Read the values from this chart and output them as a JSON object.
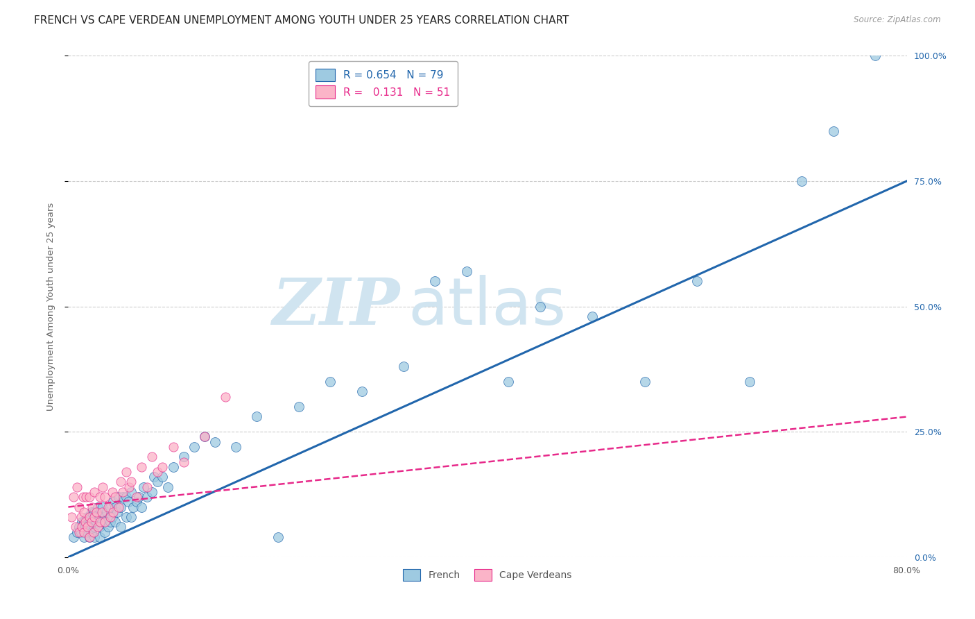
{
  "title": "FRENCH VS CAPE VERDEAN UNEMPLOYMENT AMONG YOUTH UNDER 25 YEARS CORRELATION CHART",
  "source": "Source: ZipAtlas.com",
  "ylabel": "Unemployment Among Youth under 25 years",
  "xlim": [
    0.0,
    0.8
  ],
  "ylim": [
    0.0,
    1.0
  ],
  "xticks": [
    0.0,
    0.1,
    0.2,
    0.3,
    0.4,
    0.5,
    0.6,
    0.7,
    0.8
  ],
  "xticklabels": [
    "0.0%",
    "",
    "",
    "",
    "",
    "",
    "",
    "",
    "80.0%"
  ],
  "yticks_right": [
    0.0,
    0.25,
    0.5,
    0.75,
    1.0
  ],
  "yticklabels_right": [
    "0.0%",
    "25.0%",
    "50.0%",
    "75.0%",
    "100.0%"
  ],
  "french_R": 0.654,
  "french_N": 79,
  "cape_R": 0.131,
  "cape_N": 51,
  "french_color": "#9ecae1",
  "cape_color": "#fbb4c8",
  "trendline_french_color": "#2166ac",
  "trendline_cape_color": "#e7298a",
  "french_trendline": [
    [
      0.0,
      0.0
    ],
    [
      0.8,
      0.75
    ]
  ],
  "cape_trendline": [
    [
      0.0,
      0.1
    ],
    [
      0.8,
      0.28
    ]
  ],
  "watermark_text": "ZIP",
  "watermark_text2": "atlas",
  "watermark_color": "#d0e4f0",
  "grid_color": "#cccccc",
  "bg_color": "#ffffff",
  "title_fontsize": 11,
  "axis_label_fontsize": 9.5,
  "tick_fontsize": 9,
  "legend_fontsize": 11,
  "french_x": [
    0.005,
    0.008,
    0.01,
    0.012,
    0.013,
    0.015,
    0.015,
    0.016,
    0.018,
    0.018,
    0.02,
    0.02,
    0.02,
    0.022,
    0.022,
    0.025,
    0.025,
    0.025,
    0.027,
    0.028,
    0.03,
    0.03,
    0.03,
    0.032,
    0.033,
    0.035,
    0.035,
    0.037,
    0.038,
    0.04,
    0.04,
    0.042,
    0.043,
    0.045,
    0.045,
    0.047,
    0.048,
    0.05,
    0.05,
    0.052,
    0.055,
    0.055,
    0.057,
    0.06,
    0.06,
    0.062,
    0.065,
    0.067,
    0.07,
    0.072,
    0.075,
    0.08,
    0.082,
    0.085,
    0.09,
    0.095,
    0.1,
    0.11,
    0.12,
    0.13,
    0.14,
    0.16,
    0.18,
    0.2,
    0.22,
    0.25,
    0.28,
    0.32,
    0.35,
    0.38,
    0.42,
    0.45,
    0.5,
    0.55,
    0.6,
    0.65,
    0.7,
    0.73,
    0.77
  ],
  "french_y": [
    0.04,
    0.05,
    0.06,
    0.05,
    0.07,
    0.04,
    0.07,
    0.06,
    0.05,
    0.08,
    0.04,
    0.06,
    0.08,
    0.05,
    0.09,
    0.04,
    0.06,
    0.09,
    0.07,
    0.1,
    0.04,
    0.06,
    0.08,
    0.07,
    0.1,
    0.05,
    0.08,
    0.09,
    0.06,
    0.07,
    0.1,
    0.08,
    0.11,
    0.07,
    0.1,
    0.09,
    0.12,
    0.06,
    0.1,
    0.12,
    0.08,
    0.12,
    0.11,
    0.08,
    0.13,
    0.1,
    0.11,
    0.12,
    0.1,
    0.14,
    0.12,
    0.13,
    0.16,
    0.15,
    0.16,
    0.14,
    0.18,
    0.2,
    0.22,
    0.24,
    0.23,
    0.22,
    0.28,
    0.04,
    0.3,
    0.35,
    0.33,
    0.38,
    0.55,
    0.57,
    0.35,
    0.5,
    0.48,
    0.35,
    0.55,
    0.35,
    0.75,
    0.85,
    1.0
  ],
  "cape_x": [
    0.003,
    0.005,
    0.007,
    0.008,
    0.01,
    0.01,
    0.012,
    0.013,
    0.014,
    0.015,
    0.015,
    0.016,
    0.017,
    0.018,
    0.02,
    0.02,
    0.02,
    0.022,
    0.023,
    0.024,
    0.025,
    0.025,
    0.027,
    0.028,
    0.03,
    0.03,
    0.032,
    0.033,
    0.035,
    0.035,
    0.038,
    0.04,
    0.042,
    0.043,
    0.045,
    0.048,
    0.05,
    0.052,
    0.055,
    0.058,
    0.06,
    0.065,
    0.07,
    0.075,
    0.08,
    0.085,
    0.09,
    0.1,
    0.11,
    0.13,
    0.15
  ],
  "cape_y": [
    0.08,
    0.12,
    0.06,
    0.14,
    0.05,
    0.1,
    0.08,
    0.06,
    0.12,
    0.05,
    0.09,
    0.07,
    0.12,
    0.06,
    0.04,
    0.08,
    0.12,
    0.07,
    0.1,
    0.05,
    0.08,
    0.13,
    0.09,
    0.06,
    0.07,
    0.12,
    0.09,
    0.14,
    0.07,
    0.12,
    0.1,
    0.08,
    0.13,
    0.09,
    0.12,
    0.1,
    0.15,
    0.13,
    0.17,
    0.14,
    0.15,
    0.12,
    0.18,
    0.14,
    0.2,
    0.17,
    0.18,
    0.22,
    0.19,
    0.24,
    0.32
  ]
}
